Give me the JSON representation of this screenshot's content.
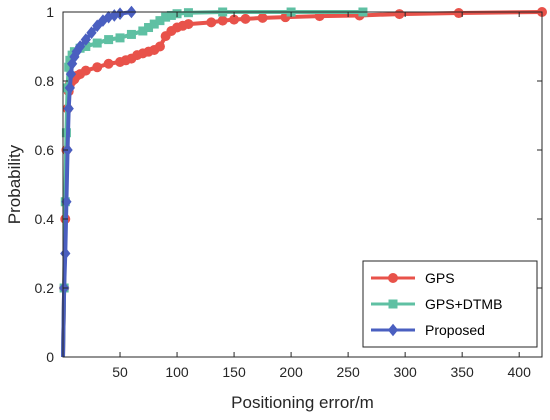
{
  "chart_data": {
    "type": "line",
    "title": "",
    "xlabel": "Positioning error/m",
    "ylabel": "Probability",
    "xlim": [
      0,
      420
    ],
    "ylim": [
      0,
      1
    ],
    "xticks": [
      50,
      100,
      150,
      200,
      250,
      300,
      350,
      400
    ],
    "yticks": [
      0,
      0.2,
      0.4,
      0.6,
      0.8,
      1
    ],
    "grid": false,
    "legend_position": "bottom-right",
    "series": [
      {
        "name": "GPS",
        "color": "#e8524a",
        "marker": "circle",
        "x": [
          0,
          1,
          2,
          3,
          4,
          5,
          6,
          8,
          10,
          12,
          15,
          20,
          30,
          40,
          50,
          55,
          60,
          65,
          70,
          75,
          80,
          85,
          90,
          95,
          100,
          105,
          110,
          130,
          140,
          150,
          160,
          175,
          195,
          225,
          260,
          295,
          347,
          420
        ],
        "y": [
          0,
          0.2,
          0.4,
          0.6,
          0.72,
          0.77,
          0.79,
          0.8,
          0.805,
          0.815,
          0.82,
          0.83,
          0.84,
          0.85,
          0.855,
          0.86,
          0.865,
          0.875,
          0.88,
          0.885,
          0.89,
          0.9,
          0.93,
          0.945,
          0.955,
          0.96,
          0.965,
          0.97,
          0.975,
          0.978,
          0.98,
          0.983,
          0.985,
          0.988,
          0.99,
          0.994,
          0.997,
          1.0
        ]
      },
      {
        "name": "GPS+DTMB",
        "color": "#5fc0a3",
        "marker": "square",
        "x": [
          0,
          1,
          2,
          3,
          4,
          5,
          6,
          8,
          10,
          15,
          20,
          30,
          40,
          50,
          60,
          70,
          75,
          80,
          85,
          90,
          95,
          100,
          110,
          140,
          200,
          263
        ],
        "y": [
          0,
          0.2,
          0.45,
          0.65,
          0.78,
          0.84,
          0.86,
          0.875,
          0.885,
          0.895,
          0.9,
          0.91,
          0.92,
          0.925,
          0.935,
          0.945,
          0.955,
          0.965,
          0.975,
          0.985,
          0.99,
          0.995,
          0.998,
          1.0,
          1.0,
          1.0
        ]
      },
      {
        "name": "Proposed",
        "color": "#4a5fc0",
        "marker": "diamond",
        "x": [
          0,
          1,
          2,
          3,
          4,
          5,
          6,
          7,
          8,
          10,
          12,
          15,
          20,
          25,
          30,
          35,
          40,
          45,
          50,
          60
        ],
        "y": [
          0,
          0.2,
          0.3,
          0.45,
          0.6,
          0.72,
          0.78,
          0.82,
          0.85,
          0.87,
          0.885,
          0.9,
          0.92,
          0.94,
          0.96,
          0.975,
          0.985,
          0.99,
          0.995,
          1.0
        ]
      }
    ]
  }
}
